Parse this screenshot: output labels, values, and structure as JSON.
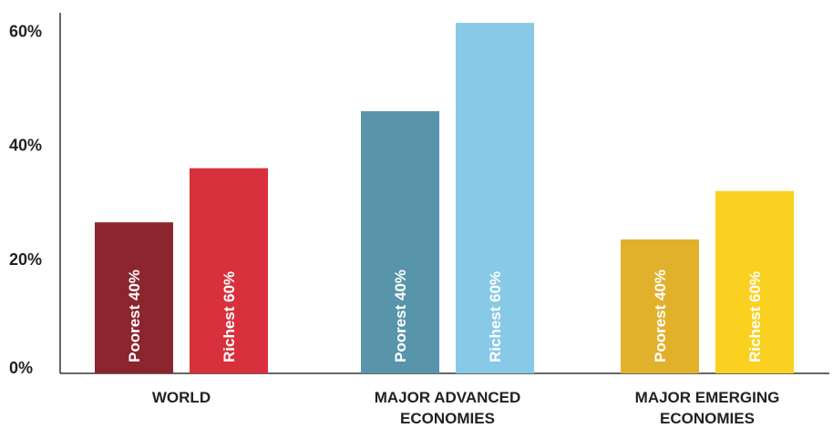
{
  "chart_data": {
    "type": "bar",
    "categories": [
      [
        "WORLD"
      ],
      [
        "MAJOR ADVANCED",
        "ECONOMIES"
      ],
      [
        "MAJOR EMERGING",
        "ECONOMIES"
      ]
    ],
    "series": [
      {
        "name": "Poorest 40%",
        "values": [
          26.5,
          46.0,
          23.5
        ]
      },
      {
        "name": "Richest 60%",
        "values": [
          36.0,
          61.5,
          32.0
        ]
      }
    ],
    "bar_labels": [
      [
        "Poorest 40%",
        "Richest 60%"
      ],
      [
        "Poorest 40%",
        "Richest 60%"
      ],
      [
        "Poorest 40%",
        "Richest 60%"
      ]
    ],
    "colors": [
      [
        "#8b252e",
        "#d8303c"
      ],
      [
        "#5894aa",
        "#87c9e6"
      ],
      [
        "#e2b12c",
        "#fbd121"
      ]
    ],
    "yticks": [
      {
        "value": 0,
        "label": "0%"
      },
      {
        "value": 20,
        "label": "20%"
      },
      {
        "value": 40,
        "label": "40%"
      },
      {
        "value": 60,
        "label": "60%"
      }
    ],
    "ylim": [
      0,
      62
    ],
    "title": "",
    "xlabel": "",
    "ylabel": "",
    "grid": false,
    "legend": "none"
  }
}
